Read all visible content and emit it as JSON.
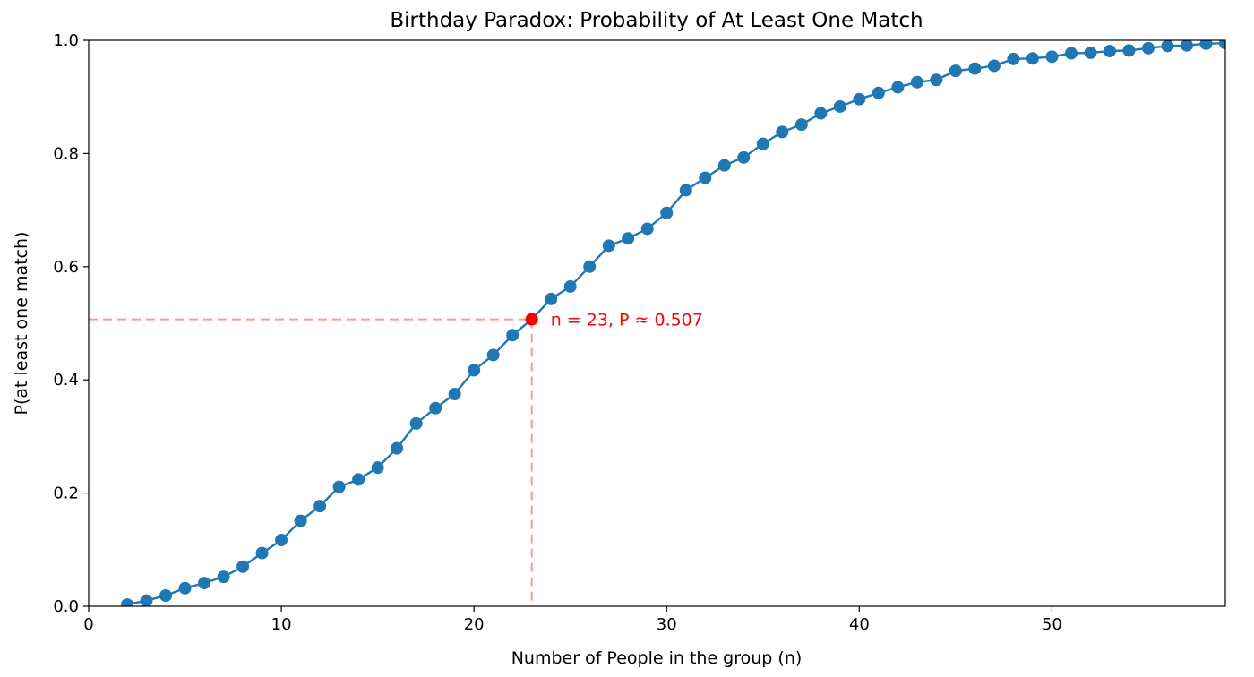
{
  "chart_data": {
    "type": "line",
    "title": "Birthday Paradox: Probability of At Least One Match",
    "xlabel": "Number of People in the group (n)",
    "ylabel": "P(at least one match)",
    "xlim": [
      0,
      59
    ],
    "ylim": [
      0,
      1.0
    ],
    "grid": false,
    "legend": "none",
    "x_ticks": [
      0,
      10,
      20,
      30,
      40,
      50
    ],
    "x_tick_labels": [
      "0",
      "10",
      "20",
      "30",
      "40",
      "50"
    ],
    "y_ticks": [
      0.0,
      0.2,
      0.4,
      0.6,
      0.8,
      1.0
    ],
    "y_tick_labels": [
      "0.0",
      "0.2",
      "0.4",
      "0.6",
      "0.8",
      "1.0"
    ],
    "colors": {
      "series": "#1f77b4",
      "highlight": "#ff0000",
      "guide": "#ff9999"
    },
    "series": [
      {
        "x": [
          2,
          3,
          4,
          5,
          6,
          7,
          8,
          9,
          10,
          11,
          12,
          13,
          14,
          15,
          16,
          17,
          18,
          19,
          20,
          21,
          22,
          23,
          24,
          25,
          26,
          27,
          28,
          29,
          30,
          31,
          32,
          33,
          34,
          35,
          36,
          37,
          38,
          39,
          40,
          41,
          42,
          43,
          44,
          45,
          46,
          47,
          48,
          49,
          50,
          51,
          52,
          53,
          54,
          55,
          56,
          57,
          58,
          59
        ],
        "y": [
          0.003,
          0.01,
          0.019,
          0.032,
          0.041,
          0.052,
          0.07,
          0.094,
          0.117,
          0.151,
          0.177,
          0.211,
          0.224,
          0.245,
          0.279,
          0.323,
          0.35,
          0.375,
          0.417,
          0.444,
          0.479,
          0.507,
          0.543,
          0.565,
          0.6,
          0.637,
          0.65,
          0.667,
          0.695,
          0.735,
          0.757,
          0.779,
          0.793,
          0.817,
          0.838,
          0.851,
          0.871,
          0.883,
          0.896,
          0.907,
          0.917,
          0.926,
          0.93,
          0.946,
          0.95,
          0.955,
          0.967,
          0.968,
          0.971,
          0.977,
          0.978,
          0.981,
          0.982,
          0.986,
          0.99,
          0.991,
          0.994,
          0.995
        ]
      }
    ],
    "highlight": {
      "x": 23,
      "y": 0.507,
      "label": "n = 23, P ≈ 0.507"
    }
  }
}
